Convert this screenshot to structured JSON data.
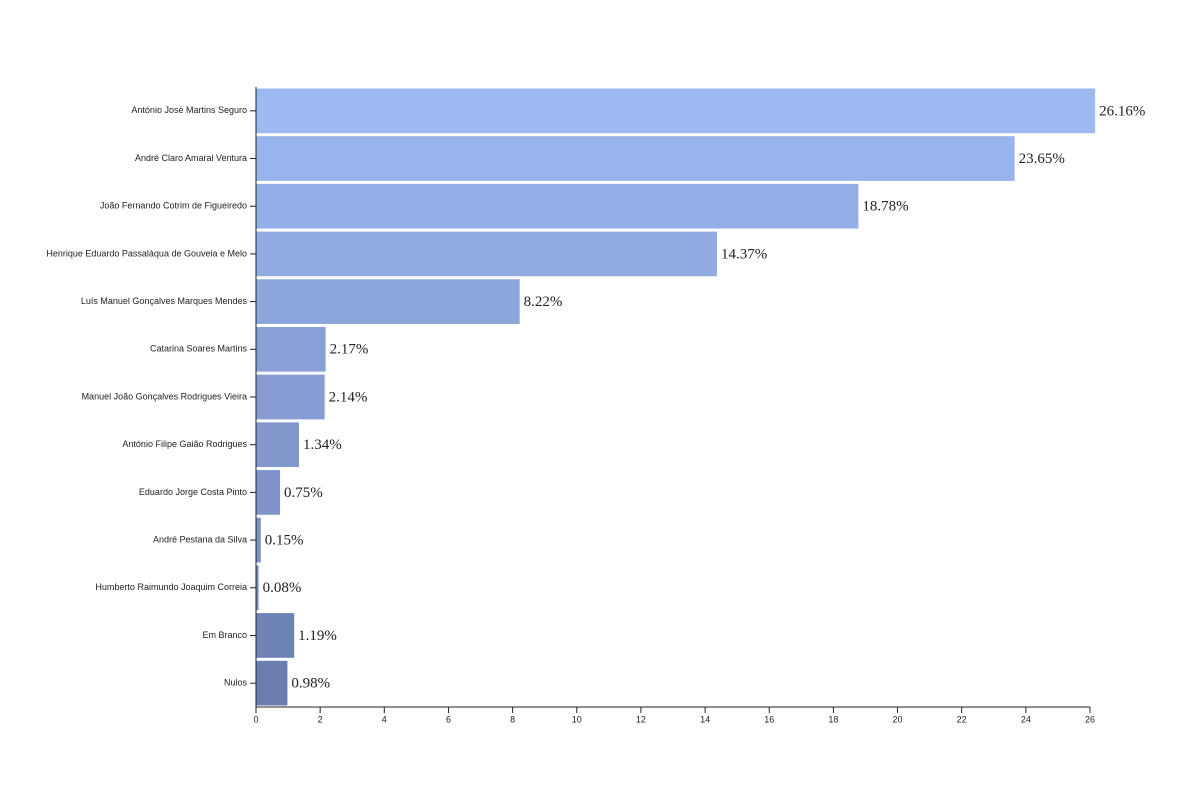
{
  "chart_data": {
    "type": "barh",
    "categories": [
      "António José Martins Seguro",
      "André Claro Amaral Ventura",
      "João Fernando Cotrim de Figueiredo",
      "Henrique Eduardo Passaláqua de Gouveia e Melo",
      "Luís Manuel Gonçalves Marques Mendes",
      "Catarina Soares Martins",
      "Manuel João Gonçalves Rodrigues Vieira",
      "António Filipe Gaião Rodrigues",
      "Eduardo Jorge Costa Pinto",
      "André Pestana da Silva",
      "Humberto Raimundo Joaquim Correia",
      "Em Branco",
      "Nulos"
    ],
    "values": [
      26.16,
      23.65,
      18.78,
      14.37,
      8.22,
      2.17,
      2.14,
      1.34,
      0.75,
      0.15,
      0.08,
      1.19,
      0.98
    ],
    "value_labels": [
      "26.16%",
      "23.65%",
      "18.78%",
      "14.37%",
      "8.22%",
      "2.17%",
      "2.14%",
      "1.34%",
      "0.75%",
      "0.15%",
      "0.08%",
      "1.19%",
      "0.98%"
    ],
    "colors": [
      "#9cb9f1",
      "#98b4ec",
      "#94afe7",
      "#91abe2",
      "#8da6dc",
      "#89a1d7",
      "#869cd2",
      "#8298cd",
      "#7e93c7",
      "#7b8fc2",
      "#778abc",
      "#6e83b6",
      "#6a7eb0"
    ],
    "xlim": [
      0,
      26
    ],
    "xticks": [
      0,
      2,
      4,
      6,
      8,
      10,
      12,
      14,
      16,
      18,
      20,
      22,
      24,
      26
    ]
  }
}
